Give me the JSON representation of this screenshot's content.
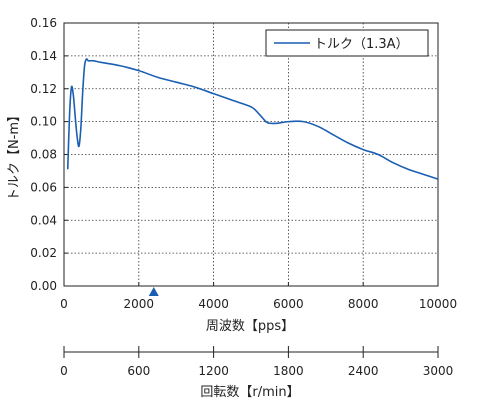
{
  "chart_data": {
    "type": "line",
    "xlabel": "周波数【pps】",
    "ylabel": "トルク【N-m】",
    "xlim": [
      0,
      10000
    ],
    "ylim": [
      0,
      0.16
    ],
    "xticks": [
      "0",
      "2000",
      "4000",
      "6000",
      "8000",
      "10000"
    ],
    "yticks": [
      "0.00",
      "0.02",
      "0.04",
      "0.06",
      "0.08",
      "0.10",
      "0.12",
      "0.14",
      "0.16"
    ],
    "grid": "dashed",
    "legend_position": "top-right",
    "marker_x": 2400,
    "series": [
      {
        "name": "トルク（1.3A）",
        "color": "#1a5fb4",
        "x": [
          100,
          150,
          200,
          250,
          300,
          350,
          400,
          450,
          500,
          550,
          600,
          650,
          700,
          800,
          1000,
          1500,
          2000,
          2500,
          3000,
          3500,
          4000,
          4500,
          5000,
          5200,
          5400,
          5500,
          5700,
          6000,
          6400,
          6800,
          7200,
          7600,
          8000,
          8400,
          8800,
          9200,
          9600,
          10000
        ],
        "y": [
          0.071,
          0.105,
          0.121,
          0.116,
          0.103,
          0.091,
          0.085,
          0.096,
          0.118,
          0.134,
          0.138,
          0.137,
          0.137,
          0.137,
          0.136,
          0.134,
          0.131,
          0.127,
          0.124,
          0.121,
          0.117,
          0.113,
          0.109,
          0.105,
          0.1,
          0.099,
          0.099,
          0.1,
          0.1,
          0.097,
          0.092,
          0.087,
          0.083,
          0.08,
          0.075,
          0.071,
          0.068,
          0.065
        ]
      }
    ],
    "secondary_axis": {
      "label": "回転数【r/min】",
      "range": [
        0,
        3000
      ],
      "ticks": [
        "0",
        "600",
        "1200",
        "1800",
        "2400",
        "3000"
      ]
    }
  }
}
